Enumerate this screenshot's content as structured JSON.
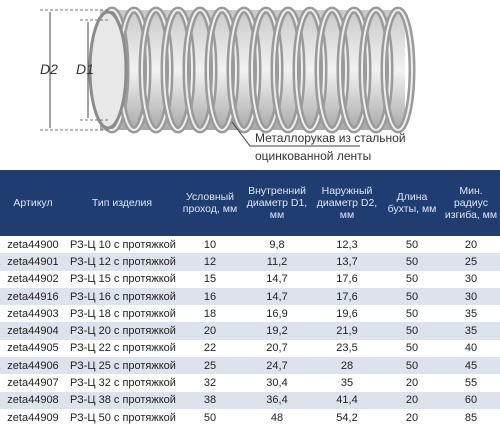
{
  "diagram": {
    "d2_label": "D2",
    "d1_label": "D1",
    "caption_lines": [
      "Металлорукав из стальной",
      "оцинкованной ленты"
    ]
  },
  "table": {
    "header": [
      "Артикул",
      "Тип изделия",
      "Условный проход, мм",
      "Внутренний диаметр D1, мм",
      "Наружный диаметр D2, мм",
      "Длина бухты, мм",
      "Мин. радиус изгиба, мм"
    ],
    "rows": [
      [
        "zeta44900",
        "РЗ-Ц 10 с протяжкой",
        "10",
        "9,8",
        "12,3",
        "50",
        "20"
      ],
      [
        "zeta44901",
        "РЗ-Ц 12 с протяжкой",
        "12",
        "11,2",
        "13,7",
        "50",
        "25"
      ],
      [
        "zeta44902",
        "РЗ-Ц 15 с протяжкой",
        "15",
        "14,7",
        "17,6",
        "50",
        "30"
      ],
      [
        "zeta44916",
        "РЗ-Ц 16 с протяжкой",
        "16",
        "14,7",
        "17,6",
        "50",
        "30"
      ],
      [
        "zeta44903",
        "РЗ-Ц 18 с протяжкой",
        "18",
        "16,9",
        "19,6",
        "50",
        "35"
      ],
      [
        "zeta44904",
        "РЗ-Ц 20 с протяжкой",
        "20",
        "19,2",
        "21,9",
        "50",
        "35"
      ],
      [
        "zeta44905",
        "РЗ-Ц 22 с протяжкой",
        "22",
        "20,7",
        "23,5",
        "50",
        "40"
      ],
      [
        "zeta44906",
        "РЗ-Ц 25 с протяжкой",
        "25",
        "24,7",
        "28",
        "50",
        "45"
      ],
      [
        "zeta44907",
        "РЗ-Ц 32 с протяжкой",
        "32",
        "30,4",
        "35",
        "20",
        "55"
      ],
      [
        "zeta44908",
        "РЗ-Ц 38 с протяжкой",
        "38",
        "36,4",
        "41,4",
        "20",
        "60"
      ],
      [
        "zeta44909",
        "РЗ-Ц 50 с протяжкой",
        "50",
        "48",
        "54,2",
        "20",
        "85"
      ]
    ]
  }
}
